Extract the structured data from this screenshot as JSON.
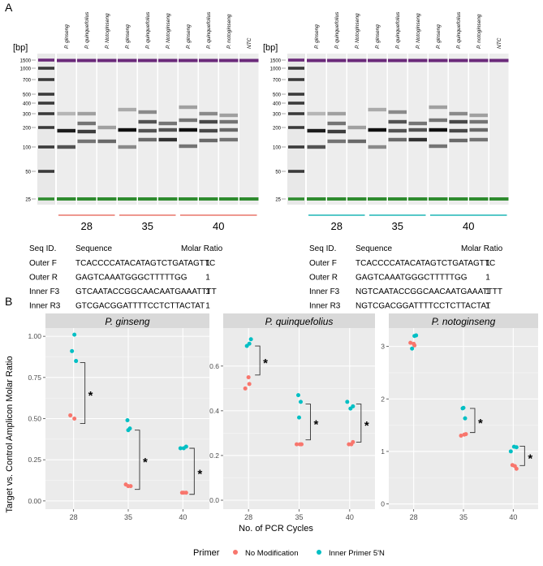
{
  "panel_a": {
    "label": "A",
    "bp_label": "[bp]",
    "ladder": [
      "1500",
      "1000",
      "700",
      "500",
      "400",
      "300",
      "200",
      "100",
      "50",
      "25"
    ],
    "left_gel": {
      "lanes": [
        "P. ginseng",
        "P. quinquefolius",
        "P. Notoginseng",
        "P. ginseng",
        "P. quinquefolius",
        "P. Notoginseng",
        "P. ginseng",
        "P. quinquefolius",
        "P. notoginseng",
        "NTC"
      ],
      "cycle_groups": [
        "28",
        "35",
        "40"
      ],
      "group_color": "#e8776c"
    },
    "right_gel": {
      "lanes": [
        "P. ginseng",
        "P. quinquefolius",
        "P. Notoginseng",
        "P. ginseng",
        "P. quinquefolius",
        "P. Notoginseng",
        "P. ginseng",
        "P. quinquefolius",
        "P. notoginseng",
        "NTC"
      ],
      "cycle_groups": [
        "28",
        "35",
        "40"
      ],
      "group_color": "#1fb5b5"
    },
    "left_table": {
      "headers": [
        "Seq ID.",
        "Sequence",
        "Molar Ratio"
      ],
      "rows": [
        [
          "Outer F",
          "TCACCCCATACATAGTCTGATAGTTC",
          "1"
        ],
        [
          "Outer R",
          "GAGTCAAATGGGCTTTTTGG",
          "1"
        ],
        [
          "Inner F3",
          "GTCAATACCGGCAACAATGAAATTTT",
          "1"
        ],
        [
          "Inner R3",
          "GTCGACGGATTTTCCTCTTACTAT",
          "1"
        ]
      ]
    },
    "right_table": {
      "headers": [
        "Seq ID.",
        "Sequence",
        "Molar Ratio"
      ],
      "rows": [
        [
          "Outer F",
          "TCACCCCATACATAGTCTGATAGTTC",
          "1"
        ],
        [
          "Outer R",
          "GAGTCAAATGGGCTTTTTGG",
          "1"
        ],
        [
          "Inner F3",
          "NGTCAATACCGGCAACAATGAAATTTT",
          "1"
        ],
        [
          "Inner R3",
          "NGTCGACGGATTTTCCTCTTACTAT",
          "1"
        ]
      ]
    }
  },
  "panel_b": {
    "label": "B",
    "significance": "*"
  },
  "chart_data": [
    {
      "type": "scatter",
      "title": "P. ginseng",
      "xlabel": "No. of PCR Cycles",
      "ylabel": "Target vs. Control Amplicon Molar Ratio",
      "categories": [
        "28",
        "35",
        "40"
      ],
      "ylim": [
        -0.05,
        1.05
      ],
      "yticks": [
        0.0,
        0.25,
        0.5,
        0.75,
        1.0
      ],
      "ytick_labels": [
        "0.00",
        "0.25",
        "0.50",
        "0.75",
        "1.00"
      ],
      "series": [
        {
          "name": "No Modification",
          "color": "#f8766d",
          "points": [
            [
              "28",
              0.52
            ],
            [
              "28",
              0.5
            ],
            [
              "35",
              0.09
            ],
            [
              "35",
              0.1
            ],
            [
              "35",
              0.09
            ],
            [
              "40",
              0.05
            ],
            [
              "40",
              0.05
            ],
            [
              "40",
              0.05
            ]
          ]
        },
        {
          "name": "Inner Primer 5'N",
          "color": "#00bfc4",
          "points": [
            [
              "28",
              1.01
            ],
            [
              "28",
              0.91
            ],
            [
              "28",
              0.85
            ],
            [
              "35",
              0.49
            ],
            [
              "35",
              0.44
            ],
            [
              "35",
              0.43
            ],
            [
              "40",
              0.32
            ],
            [
              "40",
              0.33
            ],
            [
              "40",
              0.32
            ]
          ]
        }
      ],
      "brackets": [
        [
          "28",
          0.84,
          0.47
        ],
        [
          "35",
          0.43,
          0.07
        ],
        [
          "40",
          0.32,
          0.04
        ]
      ]
    },
    {
      "type": "scatter",
      "title": "P. quinquefolius",
      "xlabel": "No. of PCR Cycles",
      "categories": [
        "28",
        "35",
        "40"
      ],
      "ylim": [
        -0.04,
        0.77
      ],
      "yticks": [
        0.0,
        0.2,
        0.4,
        0.6
      ],
      "ytick_labels": [
        "0.0",
        "0.2",
        "0.4",
        "0.6"
      ],
      "series": [
        {
          "name": "No Modification",
          "color": "#f8766d",
          "points": [
            [
              "28",
              0.5
            ],
            [
              "28",
              0.52
            ],
            [
              "28",
              0.55
            ],
            [
              "35",
              0.25
            ],
            [
              "35",
              0.25
            ],
            [
              "35",
              0.25
            ],
            [
              "40",
              0.25
            ],
            [
              "40",
              0.26
            ],
            [
              "40",
              0.25
            ]
          ]
        },
        {
          "name": "Inner Primer 5'N",
          "color": "#00bfc4",
          "points": [
            [
              "28",
              0.7
            ],
            [
              "28",
              0.69
            ],
            [
              "28",
              0.72
            ],
            [
              "35",
              0.47
            ],
            [
              "35",
              0.44
            ],
            [
              "35",
              0.37
            ],
            [
              "40",
              0.44
            ],
            [
              "40",
              0.42
            ],
            [
              "40",
              0.41
            ]
          ]
        }
      ],
      "brackets": [
        [
          "28",
          0.69,
          0.56
        ],
        [
          "35",
          0.43,
          0.27
        ],
        [
          "40",
          0.43,
          0.26
        ]
      ]
    },
    {
      "type": "scatter",
      "title": "P. notoginseng",
      "xlabel": "No. of PCR Cycles",
      "categories": [
        "28",
        "35",
        "40"
      ],
      "ylim": [
        -0.1,
        3.35
      ],
      "yticks": [
        0,
        1,
        2,
        3
      ],
      "ytick_labels": [
        "0",
        "1",
        "2",
        "3"
      ],
      "series": [
        {
          "name": "No Modification",
          "color": "#f8766d",
          "points": [
            [
              "28",
              3.07
            ],
            [
              "28",
              3.02
            ],
            [
              "28",
              3.05
            ],
            [
              "35",
              1.3
            ],
            [
              "35",
              1.33
            ],
            [
              "35",
              1.32
            ],
            [
              "40",
              0.74
            ],
            [
              "40",
              0.67
            ],
            [
              "40",
              0.72
            ]
          ]
        },
        {
          "name": "Inner Primer 5'N",
          "color": "#00bfc4",
          "points": [
            [
              "28",
              3.2
            ],
            [
              "28",
              2.96
            ],
            [
              "28",
              3.21
            ],
            [
              "35",
              1.82
            ],
            [
              "35",
              1.63
            ],
            [
              "35",
              1.83
            ],
            [
              "40",
              1.0
            ],
            [
              "40",
              1.08
            ],
            [
              "40",
              1.09
            ]
          ]
        }
      ],
      "brackets": [
        [
          "35",
          1.82,
          1.36
        ],
        [
          "40",
          1.1,
          0.73
        ]
      ]
    }
  ],
  "legend": {
    "title": "Primer",
    "items": [
      {
        "label": "No Modification",
        "color": "#f8766d"
      },
      {
        "label": "Inner Primer 5'N",
        "color": "#00bfc4"
      }
    ]
  }
}
